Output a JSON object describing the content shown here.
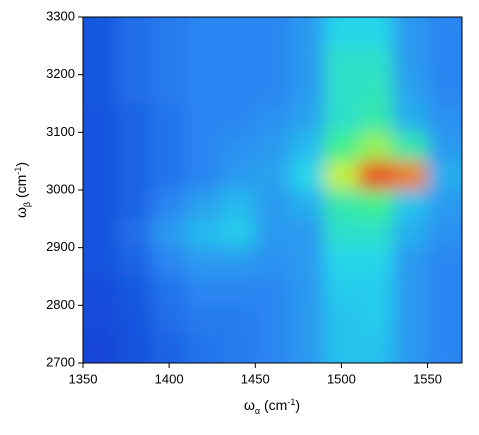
{
  "chart_data": {
    "type": "heatmap",
    "x_label": [
      "ω",
      "α",
      " (cm",
      "-1",
      ")"
    ],
    "y_label": [
      "ω",
      "β",
      " (cm",
      "-1",
      ")"
    ],
    "xlim": [
      1350,
      1570
    ],
    "ylim": [
      2700,
      3300
    ],
    "xticks": [
      1350,
      1400,
      1450,
      1500,
      1550
    ],
    "yticks": [
      2700,
      2800,
      2900,
      3000,
      3100,
      3200,
      3300
    ],
    "x": [
      1360,
      1380,
      1400,
      1420,
      1440,
      1460,
      1480,
      1500,
      1520,
      1540,
      1560
    ],
    "y": [
      3275,
      3225,
      3175,
      3125,
      3075,
      3025,
      2975,
      2925,
      2875,
      2825,
      2775,
      2725
    ],
    "cell_width": 20,
    "cell_height": 50,
    "zlim": [
      0,
      1
    ],
    "colormap": [
      {
        "value": 0,
        "color": "#0a2fd0"
      },
      {
        "value": 0.25,
        "color": "#2a86f2"
      },
      {
        "value": 0.45,
        "color": "#26d6ea"
      },
      {
        "value": 0.6,
        "color": "#3cf08c"
      },
      {
        "value": 0.8,
        "color": "#f0f020"
      },
      {
        "value": 1,
        "color": "#e81010"
      }
    ],
    "z": [
      [
        0.12,
        0.18,
        0.22,
        0.25,
        0.25,
        0.25,
        0.3,
        0.45,
        0.45,
        0.3,
        0.25
      ],
      [
        0.12,
        0.18,
        0.22,
        0.25,
        0.25,
        0.25,
        0.3,
        0.5,
        0.5,
        0.3,
        0.25
      ],
      [
        0.12,
        0.18,
        0.22,
        0.25,
        0.25,
        0.25,
        0.3,
        0.5,
        0.52,
        0.32,
        0.25
      ],
      [
        0.1,
        0.15,
        0.2,
        0.25,
        0.25,
        0.28,
        0.32,
        0.5,
        0.55,
        0.35,
        0.28
      ],
      [
        0.1,
        0.15,
        0.2,
        0.25,
        0.28,
        0.3,
        0.38,
        0.6,
        0.7,
        0.55,
        0.3
      ],
      [
        0.1,
        0.15,
        0.2,
        0.25,
        0.3,
        0.32,
        0.45,
        0.75,
        0.95,
        0.9,
        0.35
      ],
      [
        0.1,
        0.15,
        0.25,
        0.32,
        0.38,
        0.3,
        0.35,
        0.55,
        0.6,
        0.4,
        0.3
      ],
      [
        0.1,
        0.18,
        0.3,
        0.38,
        0.42,
        0.3,
        0.3,
        0.5,
        0.5,
        0.35,
        0.28
      ],
      [
        0.1,
        0.15,
        0.25,
        0.3,
        0.3,
        0.28,
        0.3,
        0.45,
        0.45,
        0.3,
        0.25
      ],
      [
        0.08,
        0.12,
        0.2,
        0.25,
        0.25,
        0.25,
        0.3,
        0.42,
        0.42,
        0.3,
        0.25
      ],
      [
        0.08,
        0.1,
        0.18,
        0.22,
        0.22,
        0.25,
        0.3,
        0.4,
        0.42,
        0.3,
        0.25
      ],
      [
        0.06,
        0.1,
        0.15,
        0.2,
        0.22,
        0.25,
        0.3,
        0.4,
        0.4,
        0.3,
        0.25
      ]
    ]
  }
}
